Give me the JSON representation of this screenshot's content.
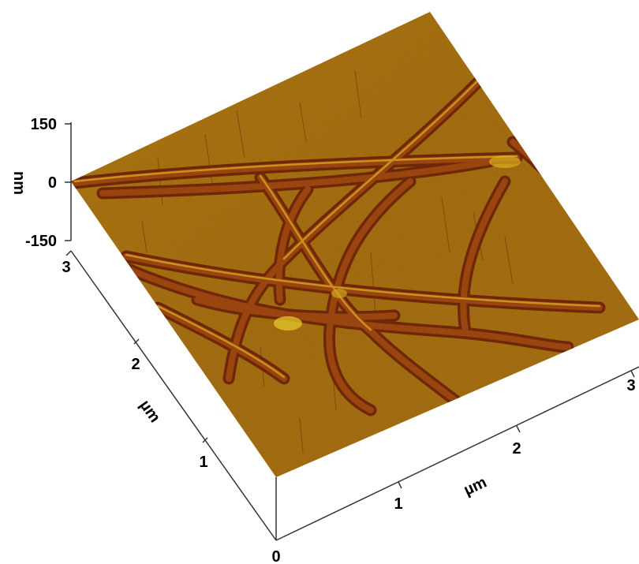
{
  "z_axis": {
    "label": "nm",
    "ticks": [
      "150",
      "0",
      "-150"
    ]
  },
  "y_axis": {
    "label": "µm",
    "ticks": [
      "3",
      "2",
      "1"
    ]
  },
  "x_axis": {
    "label": "µm",
    "ticks": [
      "0",
      "1",
      "2",
      "3"
    ]
  },
  "colors": {
    "surface_base": "#a06a10",
    "surface_dark": "#6a2a08",
    "fiber": "#8a3a0c",
    "fiber_highlight": "#d8b020"
  }
}
